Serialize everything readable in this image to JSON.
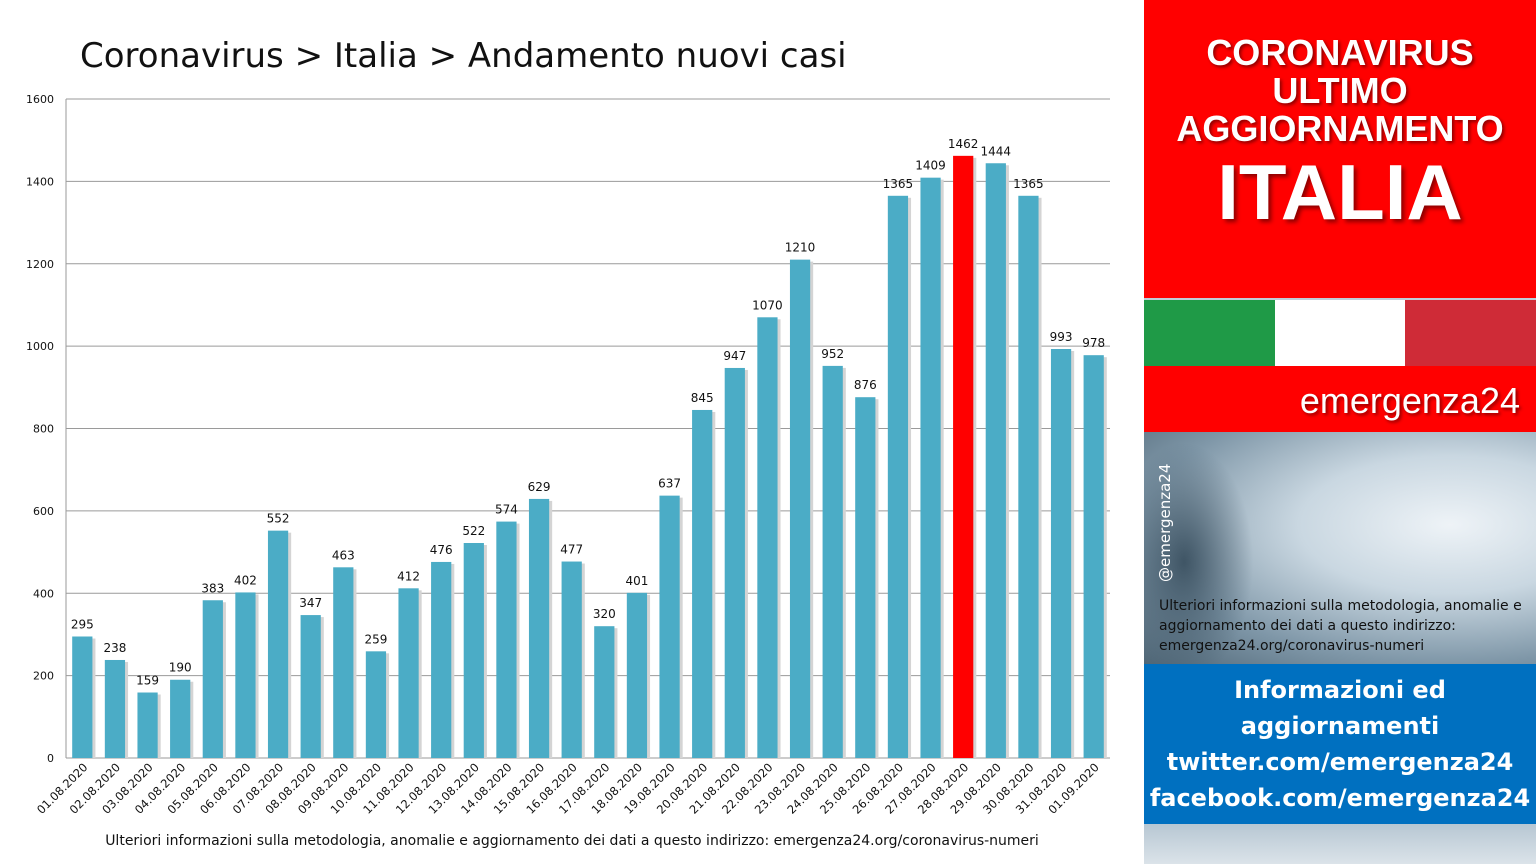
{
  "chart": {
    "title": "Coronavirus > Italia > Andamento nuovi casi",
    "footnote": "Ulteriori informazioni sulla metodologia, anomalie e aggiornamento dei dati a questo indirizzo: emergenza24.org/coronavirus-numeri"
  },
  "chart_data": {
    "type": "bar",
    "title": "Coronavirus > Italia > Andamento nuovi casi",
    "xlabel": "",
    "ylabel": "",
    "ylim": [
      0,
      1600
    ],
    "yticks": [
      0,
      200,
      400,
      600,
      800,
      1000,
      1200,
      1400,
      1600
    ],
    "grid": true,
    "bar_color": "#4bacc6",
    "highlight_color": "#ff0000",
    "highlight_category": "28.08.2020",
    "categories": [
      "01.08.2020",
      "02.08.2020",
      "03.08.2020",
      "04.08.2020",
      "05.08.2020",
      "06.08.2020",
      "07.08.2020",
      "08.08.2020",
      "09.08.2020",
      "10.08.2020",
      "11.08.2020",
      "12.08.2020",
      "13.08.2020",
      "14.08.2020",
      "15.08.2020",
      "16.08.2020",
      "17.08.2020",
      "18.08.2020",
      "19.08.2020",
      "20.08.2020",
      "21.08.2020",
      "22.08.2020",
      "23.08.2020",
      "24.08.2020",
      "25.08.2020",
      "26.08.2020",
      "27.08.2020",
      "28.08.2020",
      "29.08.2020",
      "30.08.2020",
      "31.08.2020",
      "01.09.2020"
    ],
    "values": [
      295,
      238,
      159,
      190,
      383,
      402,
      552,
      347,
      463,
      259,
      412,
      476,
      522,
      574,
      629,
      477,
      320,
      401,
      637,
      845,
      947,
      1070,
      1210,
      952,
      876,
      1365,
      1409,
      1462,
      1444,
      1365,
      993,
      978
    ]
  },
  "sidebar": {
    "header_line1": "CORONAVIRUS",
    "header_line2": "ULTIMO",
    "header_line3": "AGGIORNAMENTO",
    "country": "ITALIA",
    "brand": "emergenza24",
    "handle": "@emergenza24",
    "info_text": "Ulteriori informazioni sulla metodologia, anomalie e aggiornamento dei dati a questo indirizzo: emergenza24.org/coronavirus-numeri",
    "blue_line1": "Informazioni ed",
    "blue_line2": "aggiornamenti",
    "blue_line3": "twitter.com/emergenza24",
    "blue_line4": "facebook.com/emergenza24",
    "colors": {
      "red": "#ff0000",
      "blue": "#0070c0",
      "flag_green": "#1f9a47",
      "flag_white": "#ffffff",
      "flag_red": "#cf2b37"
    }
  }
}
